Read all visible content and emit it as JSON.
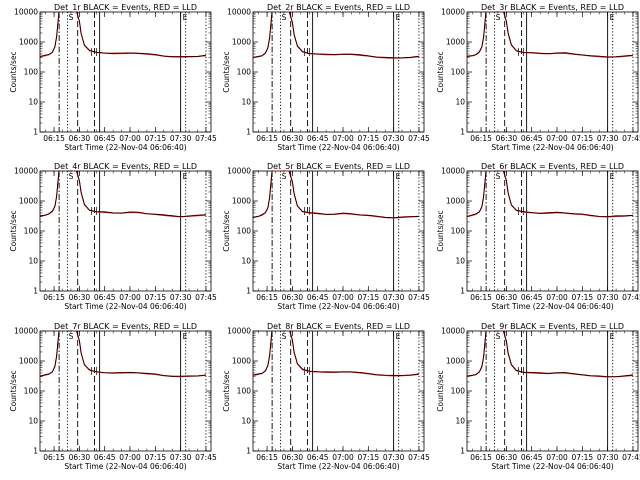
{
  "chart_data": {
    "type": "line",
    "layout": "3x3 grid",
    "y_scale": "log",
    "ylim": [
      1,
      10000
    ],
    "ylabel": "Counts/sec",
    "xlabel": "Start Time (22-Nov-04 06:06:40)",
    "x_ticks": [
      "06:15",
      "06:30",
      "06:45",
      "07:00",
      "07:15",
      "07:30",
      "07:45"
    ],
    "y_ticks": [
      "1",
      "10",
      "100",
      "1000",
      "10000"
    ],
    "xlim": [
      "06:06:40",
      "07:48:00"
    ],
    "colors": {
      "events": "#000000",
      "lld": "#ff0000"
    },
    "markers": {
      "dashdot": "06:18",
      "dotted": [
        "06:23",
        "07:45"
      ],
      "dashed": [
        "06:29",
        "06:39"
      ],
      "solid": [
        "06:42",
        "07:30"
      ],
      "dots_right": "07:33",
      "bracket_labels": [
        "S",
        "E"
      ]
    },
    "series_points": {
      "events": [
        [
          "06:06:40",
          330
        ],
        [
          "06:10",
          360
        ],
        [
          "06:12",
          390
        ],
        [
          "06:14",
          470
        ],
        [
          "06:15:30",
          700
        ],
        [
          "06:16:30",
          1500
        ],
        [
          "06:17:30",
          6000
        ],
        [
          "06:18",
          12000
        ],
        [
          "06:28",
          12000
        ],
        [
          "06:30",
          5000
        ],
        [
          "06:31",
          2000
        ],
        [
          "06:33",
          800
        ],
        [
          "06:36",
          520
        ],
        [
          "06:40",
          460
        ],
        [
          "06:45",
          440
        ],
        [
          "06:50",
          420
        ],
        [
          "06:55",
          420
        ],
        [
          "07:00",
          440
        ],
        [
          "07:05",
          430
        ],
        [
          "07:10",
          400
        ],
        [
          "07:15",
          380
        ],
        [
          "07:20",
          350
        ],
        [
          "07:25",
          330
        ],
        [
          "07:30",
          320
        ],
        [
          "07:35",
          330
        ],
        [
          "07:40",
          340
        ],
        [
          "07:45",
          360
        ]
      ]
    },
    "panels": [
      {
        "title": "Det_1r  BLACK = Events,  RED = LLD",
        "scale": 1.0
      },
      {
        "title": "Det_2r  BLACK = Events,  RED = LLD",
        "scale": 0.92
      },
      {
        "title": "Det_3r  BLACK = Events,  RED = LLD",
        "scale": 1.0
      },
      {
        "title": "Det_4r  BLACK = Events,  RED = LLD",
        "scale": 0.97
      },
      {
        "title": "Det_5r  BLACK = Events,  RED = LLD",
        "scale": 0.88
      },
      {
        "title": "Det_6r  BLACK = Events,  RED = LLD",
        "scale": 0.95
      },
      {
        "title": "Det_7r  BLACK = Events,  RED = LLD",
        "scale": 0.96
      },
      {
        "title": "Det_8r  BLACK = Events,  RED = LLD",
        "scale": 1.02
      },
      {
        "title": "Det_9r  BLACK = Events,  RED = LLD",
        "scale": 0.94
      }
    ]
  }
}
